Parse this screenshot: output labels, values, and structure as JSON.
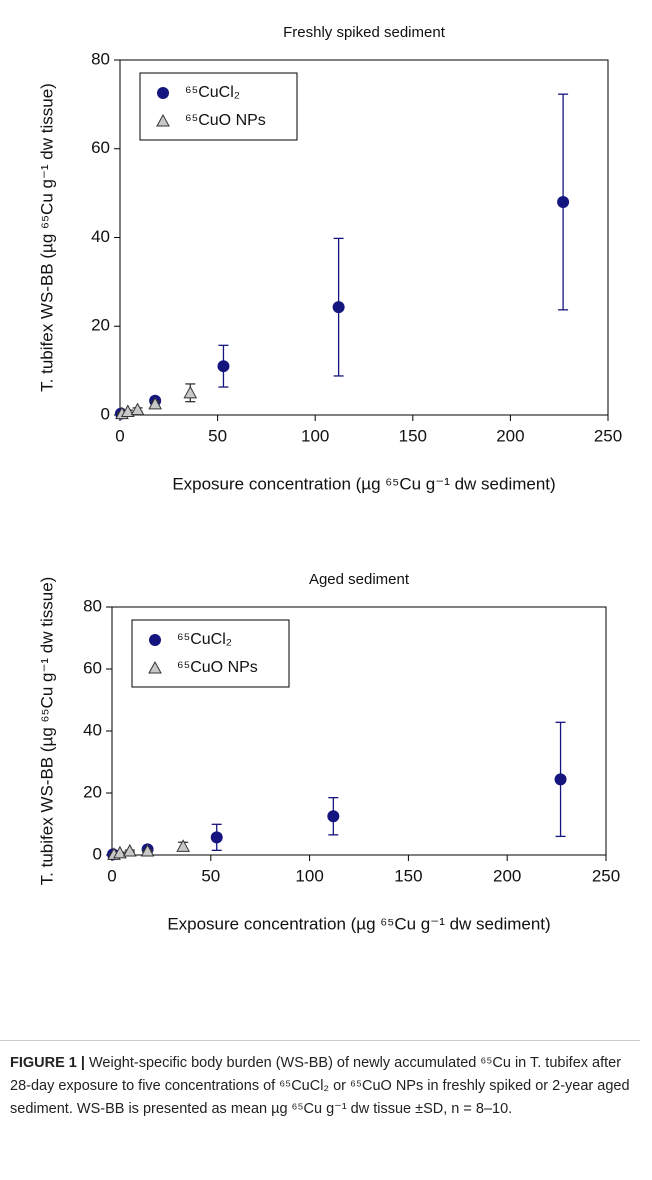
{
  "chart_data": [
    {
      "type": "scatter",
      "title": "Freshly spiked sediment",
      "x_label": "Exposure concentration (µg ⁶⁵Cu g⁻¹ dw sediment)",
      "y_label": "T. tubifex WS-BB (µg ⁶⁵Cu g⁻¹ dw tissue)",
      "xlim": [
        0,
        250
      ],
      "xticks": [
        0,
        50,
        100,
        150,
        200,
        250
      ],
      "ylim": [
        0,
        80
      ],
      "yticks": [
        0,
        20,
        40,
        60,
        80
      ],
      "legend": "upper left",
      "series": [
        {
          "name": "⁶⁵CuCl₂",
          "color": "#15157f",
          "marker": "circle",
          "x": [
            0.5,
            18,
            53,
            112,
            227
          ],
          "values": [
            0.3,
            3.2,
            11,
            24.3,
            48
          ],
          "errors": [
            0.3,
            0.6,
            4.7,
            15.5,
            24.3
          ]
        },
        {
          "name": "⁶⁵CuO NPs",
          "color": "#c8c8c8",
          "marker": "triangle",
          "x": [
            1,
            4,
            9,
            18,
            36
          ],
          "values": [
            0.3,
            0.8,
            1.2,
            2.5,
            5
          ],
          "errors": [
            0.2,
            0.3,
            0.4,
            0.6,
            2
          ]
        }
      ]
    },
    {
      "type": "scatter",
      "title": "Aged sediment",
      "x_label": "Exposure concentration (µg ⁶⁵Cu g⁻¹ dw sediment)",
      "y_label": "T. tubifex WS-BB (µg ⁶⁵Cu g⁻¹ dw tissue)",
      "xlim": [
        0,
        250
      ],
      "xticks": [
        0,
        50,
        100,
        150,
        200,
        250
      ],
      "ylim": [
        0,
        80
      ],
      "yticks": [
        0,
        20,
        40,
        60,
        80
      ],
      "legend": "upper left",
      "series": [
        {
          "name": "⁶⁵CuCl₂",
          "color": "#15157f",
          "marker": "circle",
          "x": [
            0.5,
            18,
            53,
            112,
            227
          ],
          "values": [
            0.2,
            1.8,
            5.7,
            12.5,
            24.4
          ],
          "errors": [
            0.2,
            0.4,
            4.2,
            6,
            18.4
          ]
        },
        {
          "name": "⁶⁵CuO NPs",
          "color": "#c8c8c8",
          "marker": "triangle",
          "x": [
            1,
            4,
            9,
            18,
            36
          ],
          "values": [
            0.2,
            0.7,
            1.3,
            1.3,
            2.8
          ],
          "errors": [
            0.1,
            0.2,
            0.3,
            0.3,
            1.3
          ]
        }
      ]
    }
  ],
  "caption": {
    "label": "FIGURE 1 |",
    "text": "Weight-specific body burden (WS-BB) of newly accumulated ⁶⁵Cu in T. tubifex after 28-day exposure to five concentrations of ⁶⁵CuCl₂ or ⁶⁵CuO NPs in freshly spiked or 2-year aged sediment. WS-BB is presented as mean µg ⁶⁵Cu g⁻¹ dw tissue ±SD, n = 8–10."
  }
}
